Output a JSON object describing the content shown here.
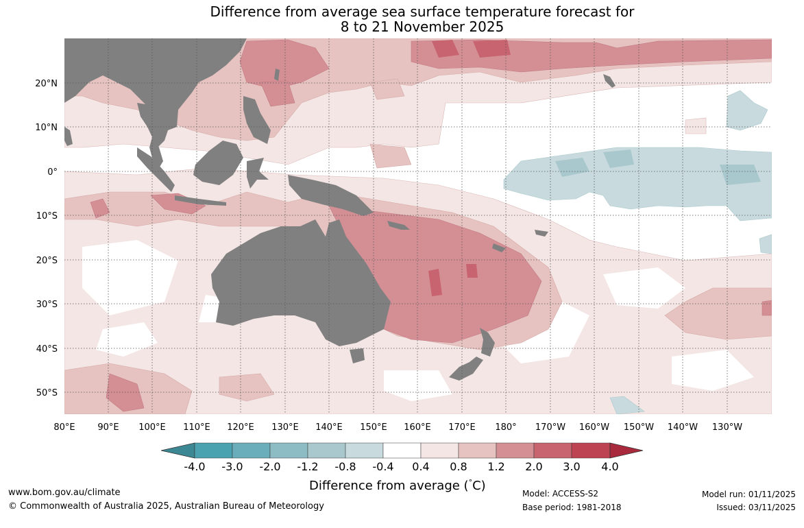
{
  "title": {
    "line1": "Difference from average sea surface temperature forecast for",
    "line2": "8 to 21 November 2025"
  },
  "map": {
    "lon_labels": [
      "80°E",
      "90°E",
      "100°E",
      "110°E",
      "120°E",
      "130°E",
      "140°E",
      "150°E",
      "160°E",
      "170°E",
      "180°",
      "170°W",
      "160°W",
      "150°W",
      "140°W",
      "130°W"
    ],
    "lat_labels": [
      "20°N",
      "10°N",
      "0°",
      "10°S",
      "20°S",
      "30°S",
      "40°S",
      "50°S"
    ],
    "land_color": "#808080",
    "regions": "Indian Ocean, Maritime Continent, Australia, New Zealand, western/central Pacific"
  },
  "colorbar": {
    "title": "Difference from average (°C)",
    "title_text": "Difference from average (",
    "title_unit": "C)",
    "title_degree": "°",
    "tick_labels": [
      "-4.0",
      "-3.0",
      "-2.0",
      "-1.2",
      "-0.8",
      "-0.4",
      "0.4",
      "0.8",
      "1.2",
      "2.0",
      "3.0",
      "4.0"
    ],
    "colors": {
      "under": "#3b8793",
      "bins": [
        "#4aa2b0",
        "#6aaebb",
        "#8dbcc4",
        "#a9c8cd",
        "#c8dadd",
        "#ffffff",
        "#f4e6e5",
        "#e6c3c0",
        "#d48f95",
        "#c8646f",
        "#be4352"
      ],
      "over": "#a82a3c"
    }
  },
  "footer": {
    "website": "www.bom.gov.au/climate",
    "copyright": "© Commonwealth of Australia 2025, Australian Bureau of Meteorology",
    "model": "Model: ACCESS-S2",
    "base_period": "Base period: 1981-2018",
    "model_run": "Model run: 01/11/2025",
    "issued": "Issued: 03/11/2025"
  }
}
